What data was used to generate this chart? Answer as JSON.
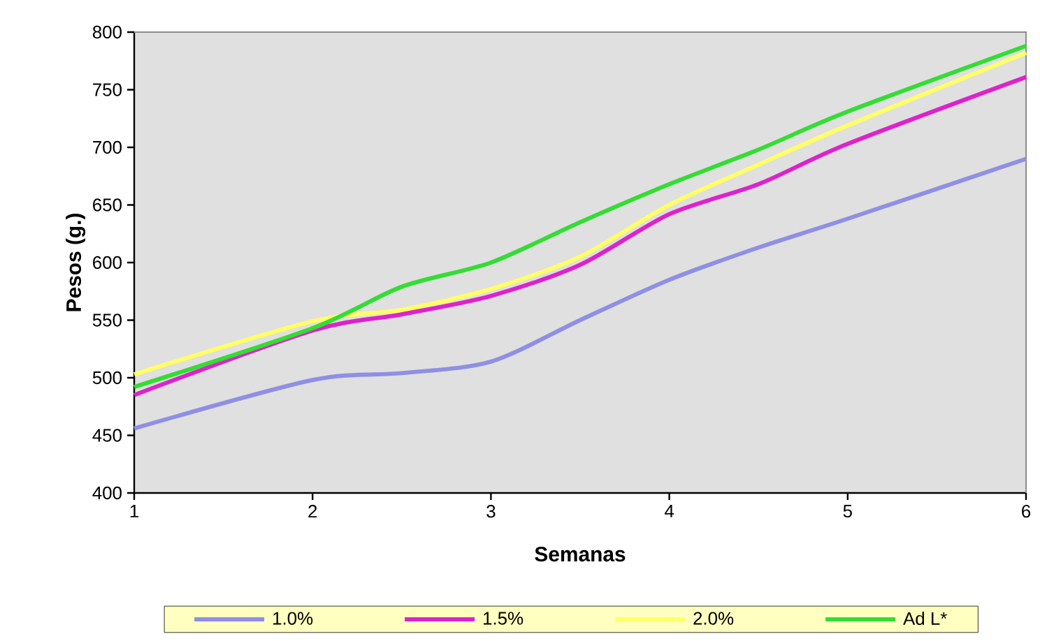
{
  "chart_data": {
    "type": "line",
    "xlabel": "Semanas",
    "ylabel": "Pesos (g.)",
    "x": [
      1,
      2,
      2.5,
      3,
      3.5,
      4,
      4.5,
      5,
      6
    ],
    "xlim": [
      1,
      6
    ],
    "xticks": [
      1,
      2,
      3,
      4,
      5,
      6
    ],
    "ylim": [
      400,
      800
    ],
    "yticks": [
      400,
      450,
      500,
      550,
      600,
      650,
      700,
      750,
      800
    ],
    "legend": "bottom",
    "marker": "none",
    "line_style": "solid",
    "series": [
      {
        "name": "1.0%",
        "color": "#8f8fe6",
        "values": [
          456,
          498,
          504,
          514,
          550,
          585,
          613,
          638,
          690
        ]
      },
      {
        "name": "1.5%",
        "color": "#dd22cc",
        "values": [
          485,
          541,
          555,
          571,
          598,
          642,
          668,
          703,
          761
        ]
      },
      {
        "name": "2.0%",
        "color": "#ffff66",
        "values": [
          503,
          549,
          559,
          577,
          605,
          650,
          685,
          719,
          782
        ]
      },
      {
        "name": "Ad L*",
        "color": "#33dd33",
        "values": [
          492,
          543,
          579,
          600,
          635,
          668,
          698,
          731,
          788
        ]
      }
    ]
  }
}
